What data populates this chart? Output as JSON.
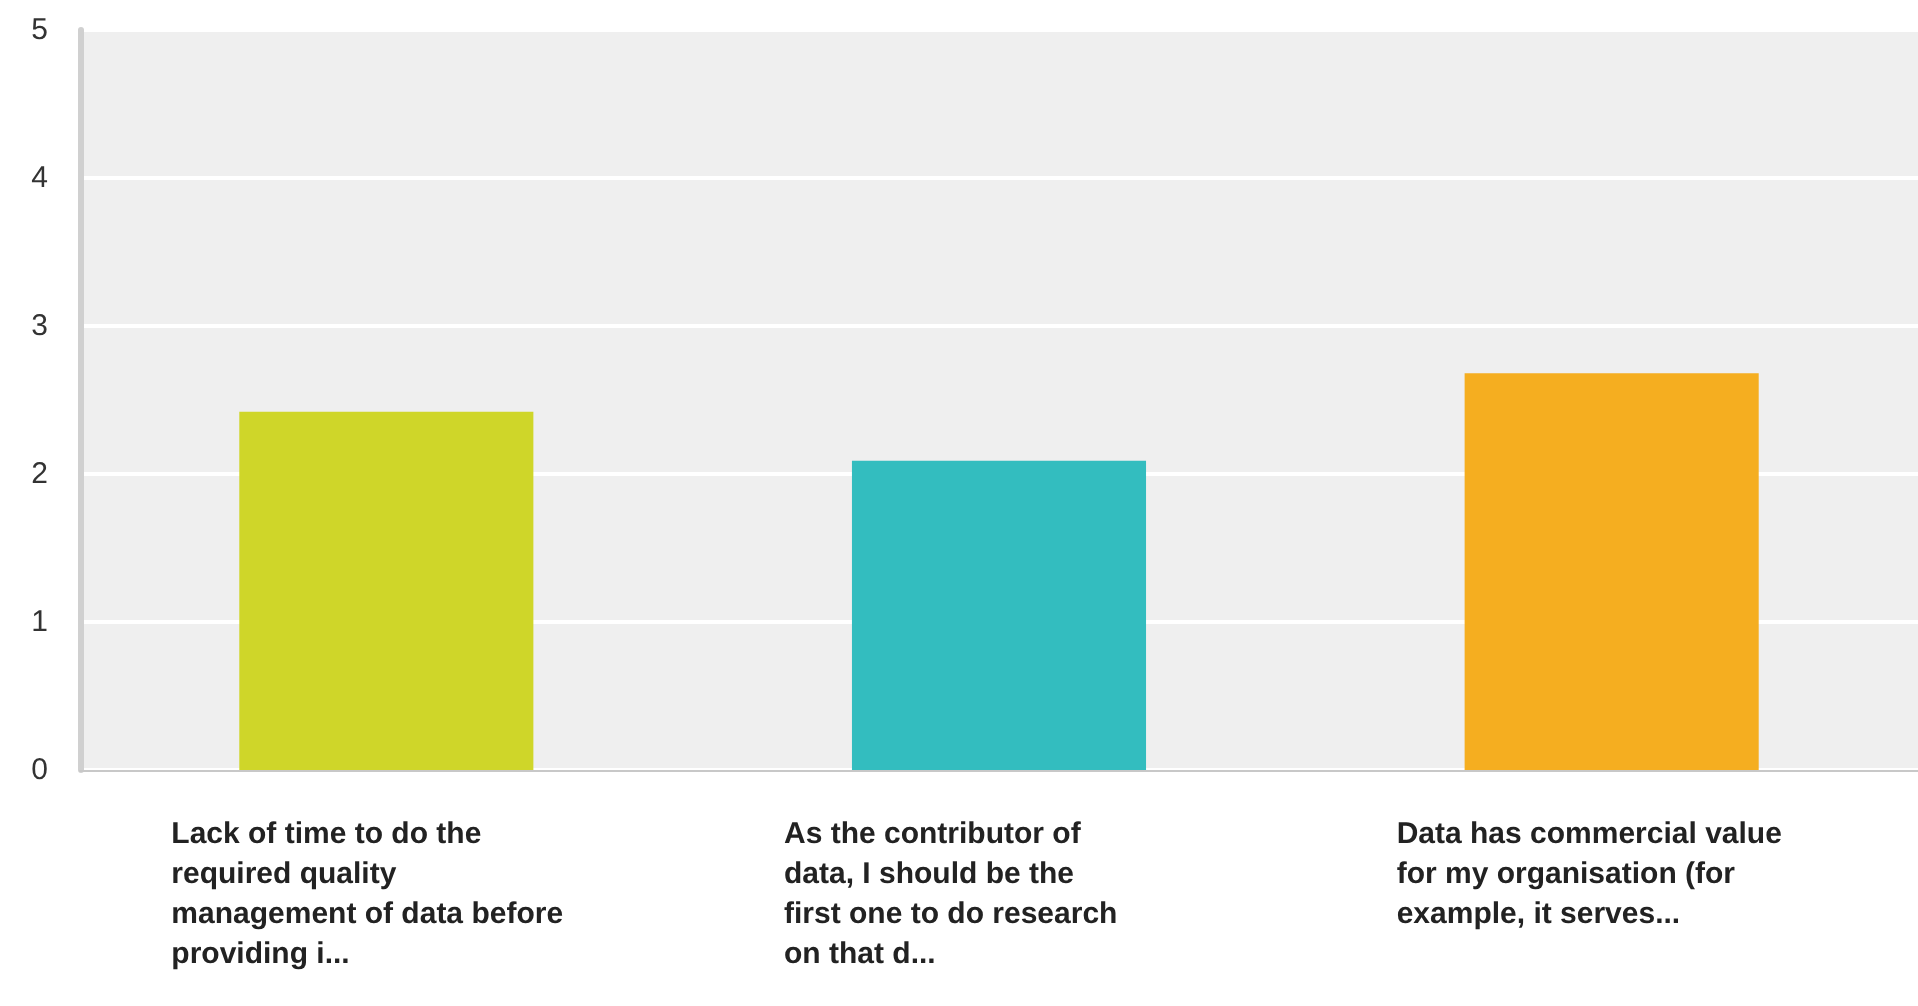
{
  "chart_data": {
    "type": "bar",
    "categories": [
      "Lack of time to do the required quality management of data before providing i...",
      "As the contributor of data, I should be the first one to do research on that d...",
      "Data has commercial value for my organisation (for example, it serves..."
    ],
    "values": [
      2.42,
      2.09,
      2.68
    ],
    "colors": [
      "#cfd629",
      "#33bdbf",
      "#f5ae20"
    ],
    "ylim": [
      0,
      5
    ],
    "yticks": [
      0,
      1,
      2,
      3,
      4,
      5
    ],
    "grid": "y"
  }
}
